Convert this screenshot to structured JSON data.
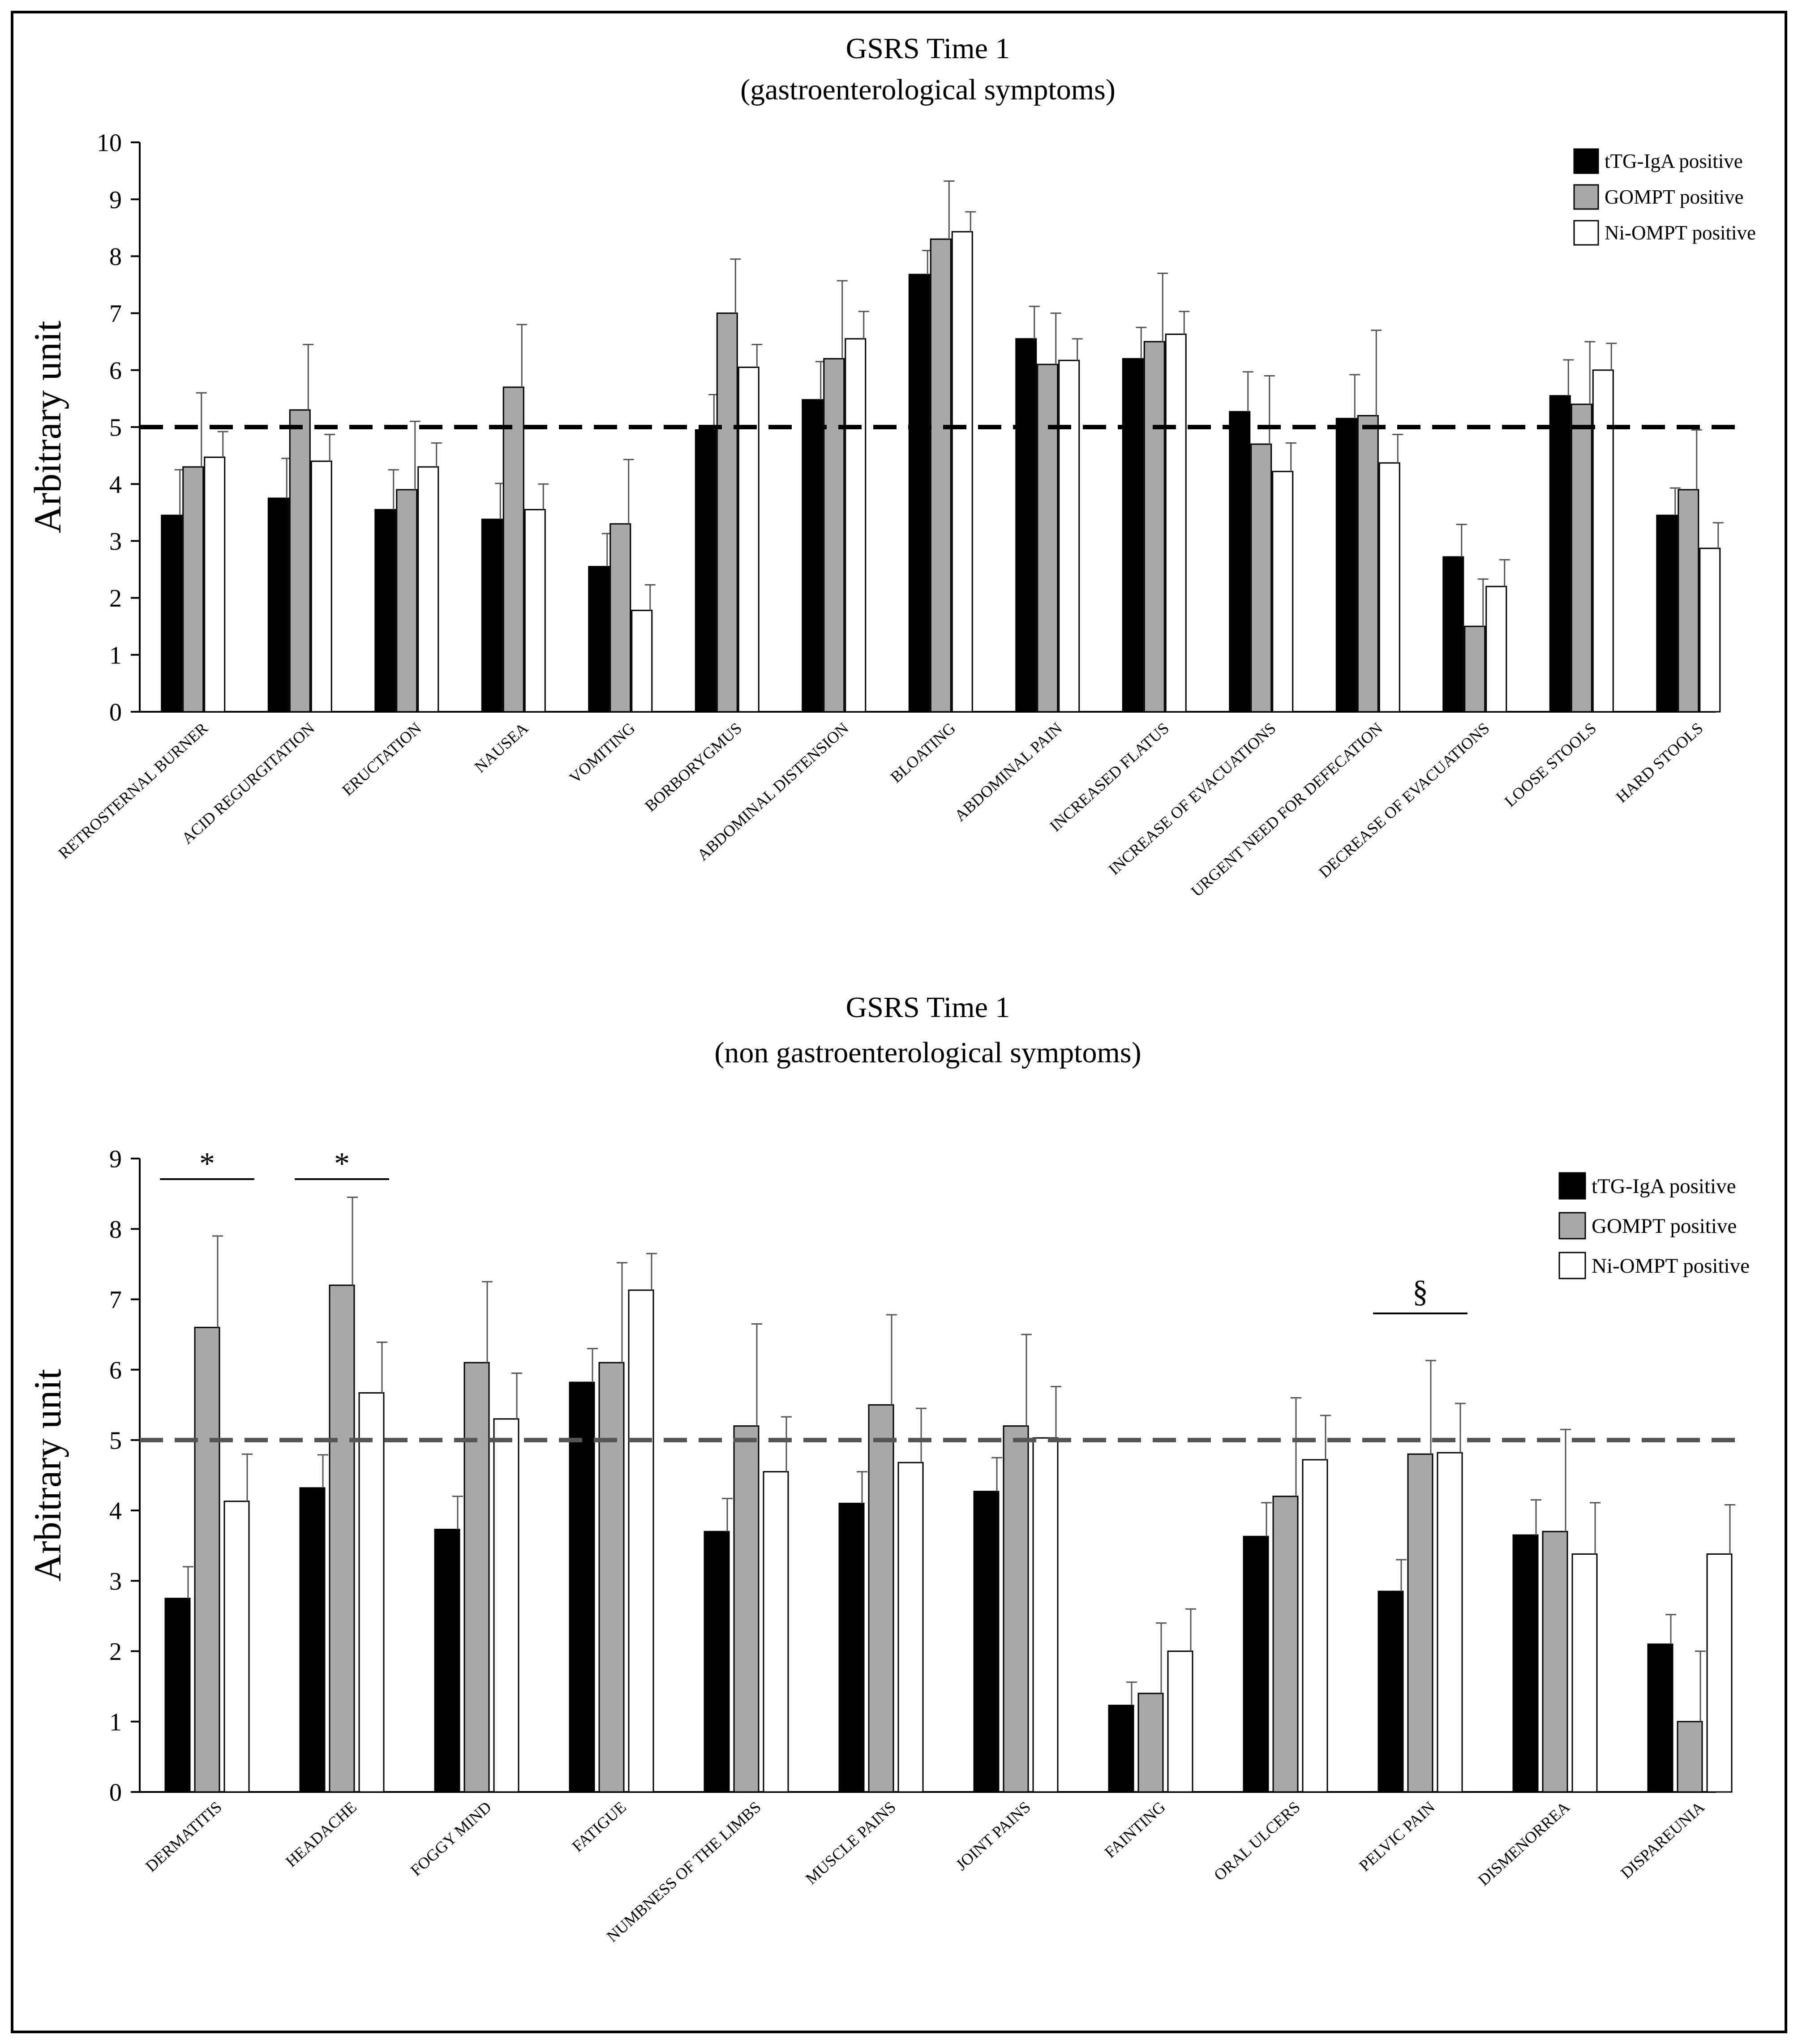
{
  "chart_data": [
    {
      "type": "bar",
      "title": "GSRS Time 1",
      "subtitle": "(gastroenterological symptoms)",
      "xlabel": "",
      "ylabel": "Arbitrary unit",
      "ylim": [
        0,
        10
      ],
      "yticks": [
        "0",
        "1",
        "2",
        "3",
        "4",
        "5",
        "6",
        "7",
        "8",
        "9",
        "10"
      ],
      "grid": false,
      "legend_position": "top-right",
      "reference_line": {
        "y": 5,
        "style": "dashed",
        "color": "#000000"
      },
      "categories": [
        "RETROSTERNAL BURNER",
        "ACID REGURGITATION",
        "ERUCTATION",
        "NAUSEA",
        "VOMITING",
        "BORBORYGMUS",
        "ABDOMINAL DISTENSION",
        "BLOATING",
        "ABDOMINAL PAIN",
        "INCREASED FLATUS",
        "INCREASE OF EVACUATIONS",
        "URGENT NEED FOR DEFECATION",
        "DECREASE OF EVACUATIONS",
        "LOOSE STOOLS",
        "HARD STOOLS"
      ],
      "series": [
        {
          "name": "tTG-IgA positive",
          "color": "#000000",
          "values": [
            3.45,
            3.75,
            3.55,
            3.38,
            2.55,
            4.95,
            5.48,
            7.68,
            6.55,
            6.2,
            5.27,
            5.15,
            2.72,
            5.55,
            3.45
          ],
          "errors": [
            0.8,
            0.7,
            0.7,
            0.63,
            0.58,
            0.62,
            0.67,
            0.42,
            0.57,
            0.55,
            0.7,
            0.77,
            0.57,
            0.63,
            0.48
          ]
        },
        {
          "name": "GOMPT positive",
          "color": "#a8a8a8",
          "values": [
            4.3,
            5.3,
            3.9,
            5.7,
            3.3,
            7.0,
            6.2,
            8.3,
            6.1,
            6.5,
            4.7,
            5.2,
            1.5,
            5.4,
            3.9
          ],
          "errors": [
            1.3,
            1.15,
            1.2,
            1.1,
            1.13,
            0.95,
            1.37,
            1.02,
            0.9,
            1.2,
            1.2,
            1.5,
            0.83,
            1.1,
            1.05
          ]
        },
        {
          "name": "Ni-OMPT positive",
          "color": "#ffffff",
          "values": [
            4.47,
            4.4,
            4.3,
            3.55,
            1.78,
            6.05,
            6.55,
            8.43,
            6.17,
            6.63,
            4.22,
            4.37,
            2.2,
            6.0,
            2.87
          ],
          "errors": [
            0.45,
            0.47,
            0.42,
            0.45,
            0.45,
            0.4,
            0.48,
            0.35,
            0.38,
            0.4,
            0.5,
            0.5,
            0.47,
            0.47,
            0.45
          ]
        }
      ],
      "significance": []
    },
    {
      "type": "bar",
      "title": "GSRS Time 1",
      "subtitle": "(non gastroenterological symptoms)",
      "xlabel": "",
      "ylabel": "Arbitrary unit",
      "ylim": [
        0,
        9
      ],
      "yticks": [
        "0",
        "1",
        "2",
        "3",
        "4",
        "5",
        "6",
        "7",
        "8",
        "9"
      ],
      "grid": false,
      "legend_position": "top-right",
      "reference_line": {
        "y": 5,
        "style": "dashed",
        "color": "#555555"
      },
      "categories": [
        "DERMATITIS",
        "HEADACHE",
        "FOGGY MIND",
        "FATIGUE",
        "NUMBNESS OF THE LIMBS",
        "MUSCLE PAINS",
        "JOINT PAINS",
        "FAINTING",
        "ORAL ULCERS",
        "PELVIC PAIN",
        "DISMENORREA",
        "DISPAREUNIA"
      ],
      "series": [
        {
          "name": "tTG-IgA positive",
          "color": "#000000",
          "values": [
            2.75,
            4.32,
            3.73,
            5.82,
            3.7,
            4.1,
            4.27,
            1.23,
            3.63,
            2.85,
            3.65,
            2.1
          ],
          "errors": [
            0.45,
            0.47,
            0.47,
            0.48,
            0.47,
            0.45,
            0.48,
            0.33,
            0.48,
            0.45,
            0.5,
            0.42
          ]
        },
        {
          "name": "GOMPT positive",
          "color": "#a8a8a8",
          "values": [
            6.6,
            7.2,
            6.1,
            6.1,
            5.2,
            5.5,
            5.2,
            1.4,
            4.2,
            4.8,
            3.7,
            1.0
          ],
          "errors": [
            1.3,
            1.25,
            1.15,
            1.42,
            1.45,
            1.28,
            1.3,
            1.0,
            1.4,
            1.33,
            1.45,
            1.0
          ]
        },
        {
          "name": "Ni-OMPT positive",
          "color": "#ffffff",
          "values": [
            4.13,
            5.67,
            5.3,
            7.13,
            4.55,
            4.68,
            5.03,
            2.0,
            4.72,
            4.82,
            3.38,
            3.38
          ],
          "errors": [
            0.67,
            0.72,
            0.65,
            0.52,
            0.78,
            0.77,
            0.73,
            0.6,
            0.63,
            0.7,
            0.73,
            0.7
          ]
        }
      ],
      "significance": [
        {
          "label": "*",
          "category_index": 0
        },
        {
          "label": "*",
          "category_index": 1
        },
        {
          "label": "§",
          "category_index": 9
        }
      ]
    }
  ]
}
